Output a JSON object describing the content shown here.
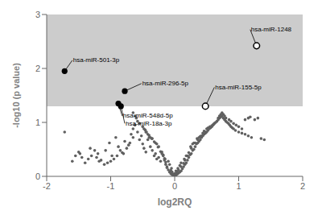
{
  "chart_data": {
    "type": "scatter",
    "xlabel": "log2RQ",
    "ylabel": "-log10 (p value)",
    "xlim": [
      -2,
      2
    ],
    "ylim": [
      0,
      3
    ],
    "xticks": [
      -2,
      -1,
      0,
      1,
      2
    ],
    "yticks": [
      0,
      1,
      2,
      3
    ],
    "grid": false,
    "shade": {
      "from": 1.3,
      "color": "#cccccc"
    },
    "series": [
      {
        "color": "#606060",
        "marker": "circle",
        "points": [
          [
            -1.72,
            0.82
          ],
          [
            -1.48,
            0.42
          ],
          [
            -1.32,
            0.52
          ],
          [
            -1.22,
            0.35
          ],
          [
            -1.18,
            0.28
          ],
          [
            -1.08,
            0.48
          ],
          [
            -1.02,
            0.62
          ],
          [
            -0.98,
            0.38
          ],
          [
            -0.92,
            0.72
          ],
          [
            -0.88,
            0.55
          ],
          [
            -0.82,
            0.44
          ],
          [
            -0.78,
            0.65
          ],
          [
            -0.72,
            0.58
          ],
          [
            -0.68,
            0.78
          ],
          [
            -0.65,
            0.88
          ],
          [
            -0.62,
            0.95
          ],
          [
            -0.58,
            0.82
          ],
          [
            -0.55,
            0.68
          ],
          [
            -0.52,
            0.75
          ],
          [
            -0.5,
            0.6
          ],
          [
            -0.48,
            0.52
          ],
          [
            -0.45,
            0.45
          ],
          [
            -0.42,
            0.68
          ],
          [
            -0.4,
            0.72
          ],
          [
            -0.38,
            0.55
          ],
          [
            -0.35,
            0.48
          ],
          [
            -0.32,
            0.38
          ],
          [
            -0.3,
            0.42
          ],
          [
            -0.28,
            0.32
          ],
          [
            -0.25,
            0.35
          ],
          [
            -0.22,
            0.28
          ],
          [
            -0.2,
            0.45
          ],
          [
            -0.18,
            0.38
          ],
          [
            -0.16,
            0.3
          ],
          [
            -0.14,
            0.22
          ],
          [
            -0.12,
            0.18
          ],
          [
            -0.1,
            0.12
          ],
          [
            -0.08,
            0.08
          ],
          [
            -0.06,
            0.05
          ],
          [
            -0.04,
            0.03
          ],
          [
            -0.02,
            0.02
          ],
          [
            0.0,
            0.01
          ],
          [
            0.02,
            0.02
          ],
          [
            0.04,
            0.04
          ],
          [
            0.06,
            0.06
          ],
          [
            0.08,
            0.08
          ],
          [
            0.1,
            0.1
          ],
          [
            0.12,
            0.14
          ],
          [
            0.14,
            0.18
          ],
          [
            0.16,
            0.22
          ],
          [
            0.18,
            0.25
          ],
          [
            0.2,
            0.3
          ],
          [
            0.22,
            0.35
          ],
          [
            0.24,
            0.4
          ],
          [
            0.26,
            0.42
          ],
          [
            0.28,
            0.48
          ],
          [
            0.3,
            0.5
          ],
          [
            0.32,
            0.55
          ],
          [
            0.34,
            0.6
          ],
          [
            0.36,
            0.62
          ],
          [
            0.38,
            0.65
          ],
          [
            0.4,
            0.68
          ],
          [
            0.42,
            0.72
          ],
          [
            0.44,
            0.75
          ],
          [
            0.46,
            0.78
          ],
          [
            0.48,
            0.8
          ],
          [
            0.5,
            0.82
          ],
          [
            0.52,
            0.85
          ],
          [
            0.54,
            0.88
          ],
          [
            0.56,
            0.9
          ],
          [
            0.58,
            0.92
          ],
          [
            0.6,
            0.95
          ],
          [
            0.62,
            0.98
          ],
          [
            0.64,
            1.0
          ],
          [
            0.66,
            1.02
          ],
          [
            0.68,
            1.05
          ],
          [
            0.7,
            1.08
          ],
          [
            0.72,
            1.1
          ],
          [
            0.74,
            1.12
          ],
          [
            0.76,
            1.08
          ],
          [
            0.78,
            1.05
          ],
          [
            0.8,
            1.02
          ],
          [
            0.82,
            1.0
          ],
          [
            0.84,
            0.98
          ],
          [
            0.86,
            0.95
          ],
          [
            0.88,
            0.92
          ],
          [
            0.9,
            0.9
          ],
          [
            0.92,
            0.88
          ],
          [
            0.95,
            0.85
          ],
          [
            1.0,
            0.82
          ],
          [
            1.05,
            0.8
          ],
          [
            1.1,
            0.78
          ],
          [
            1.15,
            0.75
          ],
          [
            1.2,
            0.72
          ],
          [
            1.25,
            1.05
          ],
          [
            1.3,
            1.08
          ],
          [
            1.35,
            0.7
          ],
          [
            1.4,
            0.68
          ],
          [
            0.02,
            0.1
          ],
          [
            0.05,
            0.15
          ],
          [
            0.08,
            0.2
          ],
          [
            0.1,
            0.25
          ],
          [
            -0.05,
            0.15
          ],
          [
            -0.08,
            0.22
          ],
          [
            -0.1,
            0.28
          ],
          [
            0.15,
            0.32
          ],
          [
            0.18,
            0.38
          ],
          [
            -0.15,
            0.32
          ],
          [
            -0.18,
            0.4
          ],
          [
            0.25,
            0.55
          ],
          [
            0.28,
            0.6
          ],
          [
            0.3,
            0.62
          ],
          [
            -0.25,
            0.55
          ],
          [
            -0.28,
            0.6
          ],
          [
            -0.3,
            0.62
          ],
          [
            0.35,
            0.7
          ],
          [
            0.38,
            0.72
          ],
          [
            -0.35,
            0.7
          ],
          [
            -0.38,
            0.72
          ],
          [
            0.42,
            0.75
          ],
          [
            -0.42,
            0.78
          ],
          [
            -0.45,
            0.82
          ],
          [
            0.45,
            0.78
          ],
          [
            0.48,
            0.82
          ],
          [
            -0.48,
            0.88
          ],
          [
            -0.5,
            0.92
          ],
          [
            0.5,
            0.88
          ],
          [
            -0.55,
            0.98
          ],
          [
            -0.58,
            1.02
          ],
          [
            -0.6,
            1.08
          ],
          [
            -0.62,
            1.12
          ],
          [
            -0.65,
            1.18
          ],
          [
            0.52,
            0.9
          ],
          [
            0.55,
            0.92
          ],
          [
            0.58,
            0.94
          ],
          [
            0.6,
            0.96
          ],
          [
            0.62,
            0.98
          ],
          [
            0.68,
            1.08
          ],
          [
            0.7,
            1.12
          ],
          [
            0.72,
            1.15
          ],
          [
            0.74,
            1.18
          ],
          [
            0.76,
            1.15
          ],
          [
            0.78,
            1.12
          ],
          [
            0.8,
            1.08
          ],
          [
            0.85,
            1.05
          ],
          [
            0.88,
            1.02
          ],
          [
            0.92,
            0.98
          ],
          [
            0.96,
            0.95
          ],
          [
            1.0,
            0.92
          ],
          [
            1.05,
            0.88
          ],
          [
            1.1,
            1.05
          ],
          [
            1.15,
            1.08
          ],
          [
            1.18,
            1.1
          ],
          [
            -0.65,
            0.72
          ],
          [
            -0.7,
            0.62
          ],
          [
            -0.75,
            0.52
          ],
          [
            -0.8,
            0.42
          ],
          [
            -0.85,
            0.48
          ],
          [
            -0.9,
            0.38
          ],
          [
            -0.95,
            0.32
          ],
          [
            -1.0,
            0.28
          ],
          [
            -1.05,
            0.25
          ],
          [
            -1.1,
            0.22
          ],
          [
            -1.15,
            0.3
          ],
          [
            -1.2,
            0.42
          ],
          [
            -1.25,
            0.48
          ],
          [
            -1.3,
            0.38
          ],
          [
            -1.35,
            0.32
          ],
          [
            -1.4,
            0.25
          ],
          [
            -1.45,
            0.35
          ],
          [
            -1.5,
            0.45
          ],
          [
            -1.55,
            0.38
          ],
          [
            -1.6,
            0.28
          ],
          [
            0.0,
            0.05
          ],
          [
            -0.02,
            0.04
          ],
          [
            0.02,
            0.06
          ],
          [
            -0.04,
            0.08
          ],
          [
            0.04,
            0.09
          ],
          [
            0.06,
            0.12
          ],
          [
            -0.06,
            0.11
          ],
          [
            0.1,
            0.18
          ],
          [
            -0.12,
            0.16
          ],
          [
            0.14,
            0.24
          ],
          [
            -0.14,
            0.26
          ],
          [
            0.16,
            0.3
          ],
          [
            -0.16,
            0.33
          ],
          [
            0.2,
            0.38
          ],
          [
            -0.2,
            0.42
          ],
          [
            0.22,
            0.44
          ],
          [
            -0.22,
            0.46
          ],
          [
            0.26,
            0.52
          ],
          [
            -0.26,
            0.54
          ],
          [
            0.32,
            0.62
          ],
          [
            -0.32,
            0.64
          ],
          [
            0.36,
            0.68
          ],
          [
            -0.36,
            0.7
          ],
          [
            0.4,
            0.74
          ],
          [
            -0.4,
            0.76
          ],
          [
            0.44,
            0.8
          ],
          [
            -0.44,
            0.82
          ],
          [
            0.46,
            0.84
          ],
          [
            -0.46,
            0.86
          ]
        ]
      }
    ],
    "annotations": [
      {
        "x": -1.72,
        "y": 1.95,
        "label": "hsa-miR-501-3p",
        "marker": "filled",
        "label_x": -1.6,
        "label_y": 2.15
      },
      {
        "x": -0.78,
        "y": 1.58,
        "label": "hsa-miR-296-5p",
        "marker": "filled",
        "label_x": -0.52,
        "label_y": 1.72
      },
      {
        "x": -0.88,
        "y": 1.35,
        "label": "hsa-miR-548d-5p",
        "marker": "filled",
        "label_x": -0.82,
        "label_y": 1.12
      },
      {
        "x": -0.84,
        "y": 1.3,
        "label": "hsa-miR-18a-3p",
        "marker": "filled",
        "label_x": -0.78,
        "label_y": 0.98
      },
      {
        "x": 1.28,
        "y": 2.42,
        "label": "hsa-miR-1248",
        "marker": "open",
        "label_x": 1.18,
        "label_y": 2.72
      },
      {
        "x": 0.48,
        "y": 1.3,
        "label": "hsa-miR-155-5p",
        "marker": "open",
        "label_x": 0.62,
        "label_y": 1.65
      }
    ]
  }
}
